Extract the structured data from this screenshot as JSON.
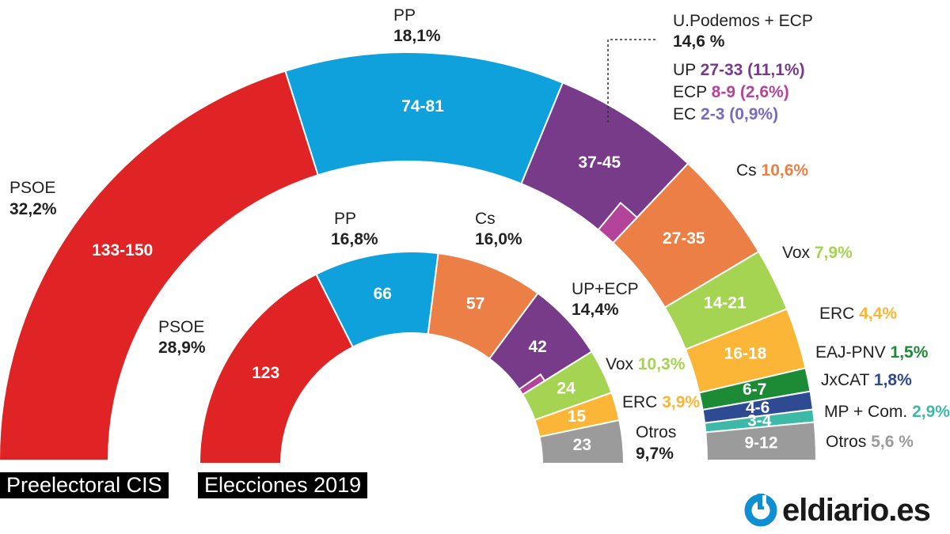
{
  "colors": {
    "psoe": "#e02325",
    "pp": "#0ea1dc",
    "up": "#773b8a",
    "ecp": "#b4449a",
    "ec": "#7a68c4",
    "cs": "#ec7f45",
    "vox": "#a5d352",
    "erc": "#fbb537",
    "pnv": "#1d8a35",
    "jxcat": "#2e4a93",
    "mp": "#3fb9a7",
    "otros": "#9b9b9b"
  },
  "tags": {
    "cis": "Preelectoral CIS",
    "elections": "Elecciones 2019"
  },
  "logo": {
    "text": "eldiario.es",
    "icon": "eldiario-logo-icon"
  },
  "labels": {
    "cis_psoe": {
      "name": "PSOE",
      "pct": "32,2%"
    },
    "cis_pp": {
      "name": "PP",
      "pct": "18,1%"
    },
    "cis_up": {
      "name": "U.Podemos + ECP",
      "pct": "14,6 %"
    },
    "cis_up_breakdown": [
      {
        "name": "UP",
        "val": "27-33 (11,1%)"
      },
      {
        "name": "ECP",
        "val": "8-9 (2,6%)"
      },
      {
        "name": "EC",
        "val": "2-3 (0,9%)"
      }
    ],
    "cis_cs": {
      "name": "Cs",
      "pct": "10,6%"
    },
    "cis_vox": {
      "name": "Vox",
      "pct": "7,9%"
    },
    "cis_erc": {
      "name": "ERC",
      "pct": "4,4%"
    },
    "cis_pnv": {
      "name": "EAJ-PNV",
      "pct": "1,5%"
    },
    "cis_jxcat": {
      "name": "JxCAT",
      "pct": "1,8%"
    },
    "cis_mp": {
      "name": "MP + Com.",
      "pct": "2,9%"
    },
    "cis_otros": {
      "name": "Otros",
      "pct": "5,6 %"
    },
    "e19_psoe": {
      "name": "PSOE",
      "pct": "28,9%"
    },
    "e19_pp": {
      "name": "PP",
      "pct": "16,8%"
    },
    "e19_cs": {
      "name": "Cs",
      "pct": "16,0%"
    },
    "e19_up": {
      "name": "UP+ECP",
      "pct": "14,4%"
    },
    "e19_vox": {
      "name": "Vox",
      "pct": "10,3%"
    },
    "e19_erc": {
      "name": "ERC",
      "pct": "3,9%"
    },
    "e19_otros": {
      "name": "Otros",
      "pct": "9,7%"
    }
  },
  "chart_data": [
    {
      "type": "half-donut",
      "title": "Preelectoral CIS",
      "series": [
        {
          "name": "PSOE",
          "seats": "133-150",
          "seats_min": 133,
          "seats_max": 150,
          "pct": 32.2,
          "color": "#e02325"
        },
        {
          "name": "PP",
          "seats": "74-81",
          "seats_min": 74,
          "seats_max": 81,
          "pct": 18.1,
          "color": "#0ea1dc"
        },
        {
          "name": "U.Podemos + ECP",
          "seats": "37-45",
          "seats_min": 37,
          "seats_max": 45,
          "pct": 14.6,
          "color": "#773b8a",
          "breakdown": [
            {
              "name": "UP",
              "seats": "27-33",
              "pct": 11.1
            },
            {
              "name": "ECP",
              "seats": "8-9",
              "pct": 2.6
            },
            {
              "name": "EC",
              "seats": "2-3",
              "pct": 0.9
            }
          ]
        },
        {
          "name": "Cs",
          "seats": "27-35",
          "seats_min": 27,
          "seats_max": 35,
          "pct": 10.6,
          "color": "#ec7f45"
        },
        {
          "name": "Vox",
          "seats": "14-21",
          "seats_min": 14,
          "seats_max": 21,
          "pct": 7.9,
          "color": "#a5d352"
        },
        {
          "name": "ERC",
          "seats": "16-18",
          "seats_min": 16,
          "seats_max": 18,
          "pct": 4.4,
          "color": "#fbb537"
        },
        {
          "name": "EAJ-PNV",
          "seats": "6-7",
          "seats_min": 6,
          "seats_max": 7,
          "pct": 1.5,
          "color": "#1d8a35"
        },
        {
          "name": "JxCAT",
          "seats": "4-6",
          "seats_min": 4,
          "seats_max": 6,
          "pct": 1.8,
          "color": "#2e4a93"
        },
        {
          "name": "MP + Com.",
          "seats": "3-4",
          "seats_min": 3,
          "seats_max": 4,
          "pct": 2.9,
          "color": "#3fb9a7"
        },
        {
          "name": "Otros",
          "seats": "9-12",
          "seats_min": 9,
          "seats_max": 12,
          "pct": 5.6,
          "color": "#9b9b9b"
        }
      ]
    },
    {
      "type": "half-donut",
      "title": "Elecciones 2019",
      "series": [
        {
          "name": "PSOE",
          "seats": "123",
          "seats_min": 123,
          "seats_max": 123,
          "pct": 28.9,
          "color": "#e02325"
        },
        {
          "name": "PP",
          "seats": "66",
          "seats_min": 66,
          "seats_max": 66,
          "pct": 16.8,
          "color": "#0ea1dc"
        },
        {
          "name": "Cs",
          "seats": "57",
          "seats_min": 57,
          "seats_max": 57,
          "pct": 16.0,
          "color": "#ec7f45"
        },
        {
          "name": "UP+ECP",
          "seats": "42",
          "seats_min": 42,
          "seats_max": 42,
          "pct": 14.4,
          "color": "#773b8a"
        },
        {
          "name": "Vox",
          "seats": "24",
          "seats_min": 24,
          "seats_max": 24,
          "pct": 10.3,
          "color": "#a5d352"
        },
        {
          "name": "ERC",
          "seats": "15",
          "seats_min": 15,
          "seats_max": 15,
          "pct": 3.9,
          "color": "#fbb537"
        },
        {
          "name": "Otros",
          "seats": "23",
          "seats_min": 23,
          "seats_max": 23,
          "pct": 9.7,
          "color": "#9b9b9b"
        }
      ]
    }
  ]
}
